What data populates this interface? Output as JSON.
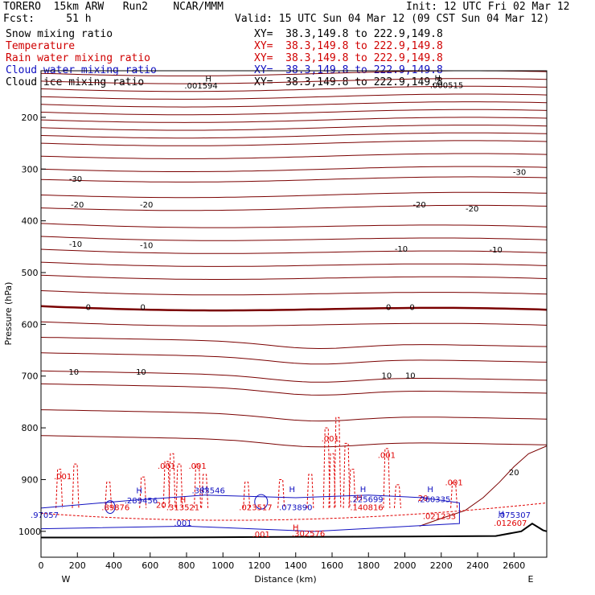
{
  "header": {
    "model": "TORERO  15km ARW   Run2    NCAR/MMM",
    "init": "Init: 12 UTC Fri 02 Mar 12",
    "fcst": "Fcst:     51 h",
    "valid": "Valid: 15 UTC Sun 04 Mar 12 (09 CST Sun 04 Mar 12)"
  },
  "fields": [
    {
      "label": "Snow mixing ratio",
      "xy": "XY=  38.3,149.8 to 222.9,149.8",
      "color": "#000000"
    },
    {
      "label": "Temperature",
      "xy": "XY=  38.3,149.8 to 222.9,149.8",
      "color": "#d00000"
    },
    {
      "label": "Rain water mixing ratio",
      "xy": "XY=  38.3,149.8 to 222.9,149.8",
      "color": "#d00000"
    },
    {
      "label": "Cloud water mixing ratio",
      "xy": "XY=  38.3,149.8 to 222.9,149.8",
      "color": "#1010c0"
    },
    {
      "label": "Cloud ice mixing ratio",
      "xy": "XY=  38.3,149.8 to 222.9,149.8",
      "color": "#000000"
    }
  ],
  "chart_data": {
    "type": "line",
    "xlabel": "Distance (km)",
    "ylabel": "Pressure (hPa)",
    "xlim": [
      0,
      2780
    ],
    "ylim": [
      1050,
      110
    ],
    "xticks": [
      "0",
      "200",
      "400",
      "600",
      "800",
      "1000",
      "1200",
      "1400",
      "1600",
      "1800",
      "2000",
      "2200",
      "2400",
      "2600"
    ],
    "yticks": [
      "200",
      "300",
      "400",
      "500",
      "600",
      "700",
      "800",
      "900",
      "1000"
    ],
    "x_end_labels": {
      "left": "W",
      "right": "E"
    },
    "colors": {
      "temperature": "#7a0000",
      "rain": "#e00000",
      "cloud": "#1010c0",
      "terrain": "#000000"
    },
    "isotherm_labels": [
      {
        "text": "-30",
        "x": 190,
        "p": 318
      },
      {
        "text": "-30",
        "x": 2630,
        "p": 305
      },
      {
        "text": "-20",
        "x": 200,
        "p": 368
      },
      {
        "text": "-20",
        "x": 580,
        "p": 368
      },
      {
        "text": "-20",
        "x": 2080,
        "p": 368
      },
      {
        "text": "-20",
        "x": 2370,
        "p": 376
      },
      {
        "text": "-10",
        "x": 190,
        "p": 444
      },
      {
        "text": "-10",
        "x": 580,
        "p": 446
      },
      {
        "text": "-10",
        "x": 1980,
        "p": 453
      },
      {
        "text": "-10",
        "x": 2500,
        "p": 455
      },
      {
        "text": "0",
        "x": 260,
        "p": 566
      },
      {
        "text": "0",
        "x": 560,
        "p": 566
      },
      {
        "text": "0",
        "x": 1910,
        "p": 566
      },
      {
        "text": "0",
        "x": 2040,
        "p": 566
      },
      {
        "text": "10",
        "x": 180,
        "p": 691
      },
      {
        "text": "10",
        "x": 550,
        "p": 691
      },
      {
        "text": "10",
        "x": 1900,
        "p": 698
      },
      {
        "text": "10",
        "x": 2030,
        "p": 698
      },
      {
        "text": "20",
        "x": 2600,
        "p": 885
      }
    ],
    "rain_labels": [
      {
        "text": ".001",
        "x": 120,
        "p": 893
      },
      {
        "text": ".001",
        "x": 690,
        "p": 873
      },
      {
        "text": ".001",
        "x": 860,
        "p": 873
      },
      {
        "text": ".001",
        "x": 1590,
        "p": 820
      },
      {
        "text": ".001",
        "x": 1900,
        "p": 852
      },
      {
        "text": ".001",
        "x": 2270,
        "p": 905
      },
      {
        "text": "H",
        "x": 780,
        "p": 938
      },
      {
        "text": "H",
        "x": 1400,
        "p": 992
      },
      {
        "text": "H",
        "x": 1750,
        "p": 934
      },
      {
        "text": ".313521",
        "x": 780,
        "p": 953
      },
      {
        "text": ".023517",
        "x": 1180,
        "p": 953
      },
      {
        "text": ".302576",
        "x": 1470,
        "p": 1003
      },
      {
        "text": ".140816",
        "x": 1790,
        "p": 953
      },
      {
        "text": ".021233",
        "x": 2190,
        "p": 970
      },
      {
        "text": ".012607",
        "x": 2580,
        "p": 983
      },
      {
        "text": "20",
        "x": 660,
        "p": 948
      },
      {
        "text": "20",
        "x": 2100,
        "p": 935
      },
      {
        "text": ".89876",
        "x": 410,
        "p": 953
      },
      {
        "text": ".001",
        "x": 1210,
        "p": 1005
      }
    ],
    "cloud_labels": [
      {
        "text": "H",
        "x": 540,
        "p": 920
      },
      {
        "text": "H",
        "x": 900,
        "p": 918
      },
      {
        "text": "H",
        "x": 1380,
        "p": 918
      },
      {
        "text": "H",
        "x": 1770,
        "p": 918
      },
      {
        "text": "H",
        "x": 2140,
        "p": 918
      },
      {
        "text": "H",
        "x": 2530,
        "p": 965
      },
      {
        "text": ".289456",
        "x": 550,
        "p": 940
      },
      {
        "text": ".383546",
        "x": 920,
        "p": 920
      },
      {
        "text": ".073890",
        "x": 1400,
        "p": 953
      },
      {
        "text": ".225699",
        "x": 1790,
        "p": 937
      },
      {
        "text": ".260335",
        "x": 2160,
        "p": 937
      },
      {
        "text": ".97057",
        "x": 20,
        "p": 968
      },
      {
        "text": ".001",
        "x": 780,
        "p": 983
      },
      {
        "text": ".075307",
        "x": 2600,
        "p": 968
      }
    ],
    "ice_labels": [
      {
        "text": "H",
        "x": 920,
        "p": 125
      },
      {
        "text": ".001594",
        "x": 880,
        "p": 138
      },
      {
        "text": "H",
        "x": 2180,
        "p": 123
      },
      {
        "text": ".000515",
        "x": 2230,
        "p": 137
      }
    ]
  }
}
